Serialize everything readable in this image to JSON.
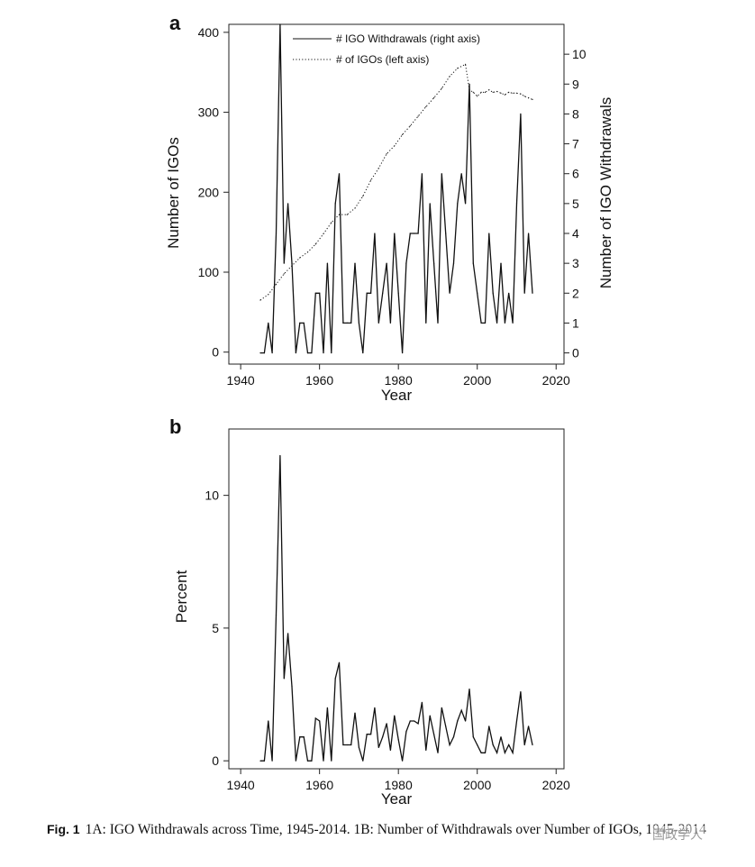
{
  "chart_data": [
    {
      "panel": "a",
      "type": "line",
      "xlabel": "Year",
      "ylabel_left": "Number of IGOs",
      "ylabel_right": "Number of IGO Withdrawals",
      "xlim": [
        1937,
        2022
      ],
      "x_ticks": [
        1940,
        1960,
        1980,
        2000,
        2020
      ],
      "ylim_left": [
        -15,
        410
      ],
      "y_ticks_left": [
        0,
        100,
        200,
        300,
        400
      ],
      "ylim_right": [
        -0.375,
        11.0
      ],
      "y_ticks_right": [
        0,
        1,
        2,
        3,
        4,
        5,
        6,
        7,
        8,
        9,
        10
      ],
      "legend_position": "top-left",
      "series": [
        {
          "name": "# IGO Withdrawals (right axis)",
          "axis": "right",
          "style": "solid",
          "x": [
            1945,
            1946,
            1947,
            1948,
            1949,
            1950,
            1951,
            1952,
            1953,
            1954,
            1955,
            1956,
            1957,
            1958,
            1959,
            1960,
            1961,
            1962,
            1963,
            1964,
            1965,
            1966,
            1967,
            1968,
            1969,
            1970,
            1971,
            1972,
            1973,
            1974,
            1975,
            1976,
            1977,
            1978,
            1979,
            1980,
            1981,
            1982,
            1983,
            1984,
            1985,
            1986,
            1987,
            1988,
            1989,
            1990,
            1991,
            1992,
            1993,
            1994,
            1995,
            1996,
            1997,
            1998,
            1999,
            2000,
            2001,
            2002,
            2003,
            2004,
            2005,
            2006,
            2007,
            2008,
            2009,
            2010,
            2011,
            2012,
            2013,
            2014
          ],
          "values": [
            0,
            0,
            1,
            0,
            4,
            11,
            3,
            5,
            3,
            0,
            1,
            1,
            0,
            0,
            2,
            2,
            0,
            3,
            0,
            5,
            6,
            1,
            1,
            1,
            3,
            1,
            0,
            2,
            2,
            4,
            1,
            2,
            3,
            1,
            4,
            2,
            0,
            3,
            4,
            4,
            4,
            6,
            1,
            5,
            3,
            1,
            6,
            4,
            2,
            3,
            5,
            6,
            5,
            9,
            3,
            2,
            1,
            1,
            4,
            2,
            1,
            3,
            1,
            2,
            1,
            5,
            8,
            2,
            4,
            2
          ]
        },
        {
          "name": "# of IGOs (left axis)",
          "axis": "left",
          "style": "dotted",
          "x": [
            1945,
            1947,
            1949,
            1951,
            1953,
            1955,
            1957,
            1959,
            1961,
            1963,
            1965,
            1967,
            1969,
            1971,
            1973,
            1975,
            1977,
            1979,
            1981,
            1983,
            1985,
            1987,
            1989,
            1991,
            1993,
            1995,
            1997,
            1998,
            1999,
            2000,
            2001,
            2002,
            2003,
            2004,
            2005,
            2006,
            2007,
            2008,
            2009,
            2010,
            2011,
            2012,
            2013,
            2014
          ],
          "values": [
            65,
            72,
            85,
            98,
            108,
            118,
            125,
            135,
            148,
            162,
            172,
            172,
            180,
            195,
            215,
            230,
            248,
            258,
            272,
            283,
            295,
            307,
            318,
            330,
            345,
            355,
            360,
            328,
            325,
            320,
            325,
            325,
            328,
            325,
            326,
            324,
            322,
            325,
            324,
            324,
            323,
            320,
            318,
            316
          ]
        }
      ]
    },
    {
      "panel": "b",
      "type": "line",
      "xlabel": "Year",
      "ylabel": "Percent",
      "xlim": [
        1937,
        2022
      ],
      "x_ticks": [
        1940,
        1960,
        1980,
        2000,
        2020
      ],
      "ylim": [
        -0.3,
        12.5
      ],
      "y_ticks": [
        0,
        5,
        10
      ],
      "series": [
        {
          "style": "solid",
          "x": [
            1945,
            1946,
            1947,
            1948,
            1949,
            1950,
            1951,
            1952,
            1953,
            1954,
            1955,
            1956,
            1957,
            1958,
            1959,
            1960,
            1961,
            1962,
            1963,
            1964,
            1965,
            1966,
            1967,
            1968,
            1969,
            1970,
            1971,
            1972,
            1973,
            1974,
            1975,
            1976,
            1977,
            1978,
            1979,
            1980,
            1981,
            1982,
            1983,
            1984,
            1985,
            1986,
            1987,
            1988,
            1989,
            1990,
            1991,
            1992,
            1993,
            1994,
            1995,
            1996,
            1997,
            1998,
            1999,
            2000,
            2001,
            2002,
            2003,
            2004,
            2005,
            2006,
            2007,
            2008,
            2009,
            2010,
            2011,
            2012,
            2013,
            2014
          ],
          "values": [
            0,
            0,
            1.5,
            0,
            5.5,
            11.5,
            3.1,
            4.8,
            2.8,
            0,
            0.9,
            0.9,
            0,
            0,
            1.6,
            1.5,
            0,
            2.0,
            0,
            3.1,
            3.7,
            0.6,
            0.6,
            0.6,
            1.8,
            0.5,
            0,
            1.0,
            1.0,
            2.0,
            0.5,
            0.9,
            1.4,
            0.4,
            1.7,
            0.8,
            0,
            1.1,
            1.5,
            1.5,
            1.4,
            2.2,
            0.4,
            1.7,
            1.0,
            0.3,
            2.0,
            1.3,
            0.6,
            0.9,
            1.5,
            1.9,
            1.5,
            2.7,
            0.9,
            0.6,
            0.3,
            0.3,
            1.3,
            0.6,
            0.3,
            0.9,
            0.3,
            0.6,
            0.3,
            1.5,
            2.6,
            0.6,
            1.3,
            0.6
          ]
        }
      ]
    }
  ],
  "caption": {
    "label": "Fig. 1",
    "text": "1A: IGO Withdrawals across Time, 1945-2014. 1B: Number of Withdrawals over Number of IGOs, 1945-2014"
  },
  "watermark": "国政学人"
}
